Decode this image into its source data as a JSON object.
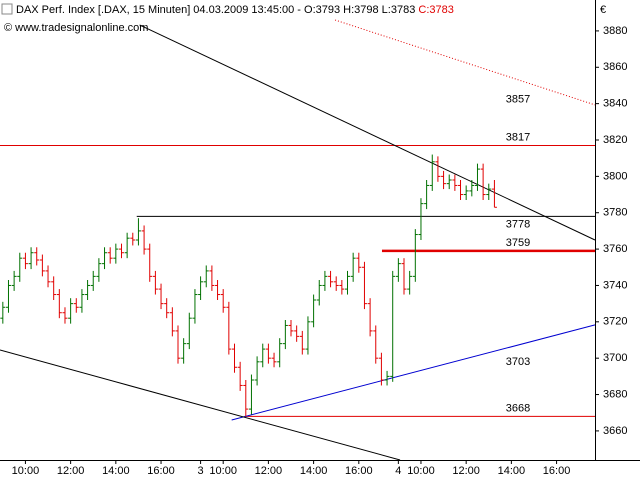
{
  "chart_data": {
    "type": "ohlc",
    "title": "DAX Perf. Index [.DAX, 15 Minuten] 04.03.2009 13:45:00 - O:3793 H:3798 L:3783",
    "title_close": "C:3783",
    "copyright": "© www.tradesignalonline.com",
    "currency": "€",
    "up_color": "#007000",
    "down_color": "#e00000",
    "xlim": [
      -0.5,
      104.8
    ],
    "ylim": [
      3644,
      3886
    ],
    "yticks": [
      3660,
      3680,
      3700,
      3720,
      3740,
      3760,
      3780,
      3800,
      3820,
      3840,
      3860,
      3880
    ],
    "xticks": [
      {
        "value": 4,
        "label": "10:00"
      },
      {
        "value": 12,
        "label": "12:00"
      },
      {
        "value": 20,
        "label": "14:00"
      },
      {
        "value": 28,
        "label": "16:00"
      },
      {
        "value": 35,
        "label": "3"
      },
      {
        "value": 39,
        "label": "10:00"
      },
      {
        "value": 47,
        "label": "12:00"
      },
      {
        "value": 55,
        "label": "14:00"
      },
      {
        "value": 63,
        "label": "16:00"
      },
      {
        "value": 70,
        "label": "4"
      },
      {
        "value": 74,
        "label": "10:00"
      },
      {
        "value": 82,
        "label": "12:00"
      },
      {
        "value": 90,
        "label": "14:00"
      },
      {
        "value": 98,
        "label": "16:00"
      }
    ],
    "open": [
      3722,
      3728,
      3740,
      3745,
      3755,
      3752,
      3758,
      3754,
      3748,
      3742,
      3735,
      3725,
      3722,
      3730,
      3728,
      3735,
      3740,
      3745,
      3752,
      3758,
      3755,
      3760,
      3758,
      3766,
      3765,
      3770,
      3760,
      3745,
      3738,
      3730,
      3725,
      3715,
      3700,
      3708,
      3722,
      3735,
      3742,
      3748,
      3740,
      3735,
      3728,
      3705,
      3695,
      3685,
      3672,
      3688,
      3698,
      3705,
      3700,
      3698,
      3708,
      3718,
      3715,
      3712,
      3705,
      3720,
      3732,
      3740,
      3745,
      3742,
      3740,
      3738,
      3745,
      3755,
      3750,
      3730,
      3715,
      3700,
      3688,
      3690,
      3745,
      3752,
      3738,
      3745,
      3768,
      3785,
      3795,
      3808,
      3800,
      3796,
      3798,
      3795,
      3790,
      3792,
      3795,
      3804,
      3790,
      3793
    ],
    "high": [
      3731,
      3743,
      3748,
      3758,
      3758,
      3761,
      3761,
      3757,
      3751,
      3745,
      3738,
      3728,
      3733,
      3733,
      3738,
      3743,
      3748,
      3755,
      3761,
      3761,
      3763,
      3763,
      3769,
      3769,
      3777,
      3773,
      3763,
      3748,
      3741,
      3733,
      3728,
      3718,
      3711,
      3725,
      3738,
      3745,
      3751,
      3751,
      3743,
      3738,
      3731,
      3708,
      3698,
      3688,
      3691,
      3701,
      3708,
      3708,
      3703,
      3711,
      3721,
      3721,
      3718,
      3715,
      3723,
      3735,
      3743,
      3748,
      3748,
      3745,
      3743,
      3748,
      3758,
      3758,
      3753,
      3733,
      3718,
      3703,
      3693,
      3748,
      3755,
      3755,
      3748,
      3771,
      3788,
      3798,
      3812,
      3811,
      3803,
      3801,
      3801,
      3798,
      3795,
      3798,
      3807,
      3807,
      3796,
      3798
    ],
    "low": [
      3719,
      3725,
      3737,
      3742,
      3749,
      3749,
      3751,
      3745,
      3739,
      3732,
      3722,
      3719,
      3719,
      3725,
      3725,
      3732,
      3737,
      3742,
      3749,
      3752,
      3752,
      3755,
      3755,
      3762,
      3762,
      3757,
      3742,
      3735,
      3727,
      3722,
      3712,
      3697,
      3697,
      3705,
      3719,
      3732,
      3739,
      3737,
      3732,
      3725,
      3702,
      3692,
      3682,
      3668,
      3669,
      3685,
      3695,
      3697,
      3695,
      3695,
      3705,
      3712,
      3709,
      3702,
      3702,
      3717,
      3729,
      3737,
      3739,
      3737,
      3735,
      3735,
      3742,
      3747,
      3727,
      3712,
      3697,
      3685,
      3685,
      3687,
      3742,
      3735,
      3735,
      3742,
      3765,
      3782,
      3792,
      3797,
      3793,
      3793,
      3792,
      3787,
      3787,
      3789,
      3792,
      3787,
      3787,
      3783
    ],
    "close": [
      3728,
      3740,
      3745,
      3755,
      3752,
      3758,
      3754,
      3748,
      3742,
      3735,
      3725,
      3722,
      3730,
      3728,
      3735,
      3740,
      3745,
      3752,
      3758,
      3755,
      3760,
      3758,
      3766,
      3765,
      3770,
      3760,
      3745,
      3738,
      3730,
      3725,
      3715,
      3700,
      3708,
      3722,
      3735,
      3742,
      3748,
      3740,
      3735,
      3728,
      3705,
      3695,
      3685,
      3672,
      3688,
      3698,
      3705,
      3700,
      3698,
      3708,
      3718,
      3715,
      3712,
      3705,
      3720,
      3732,
      3740,
      3745,
      3742,
      3740,
      3738,
      3745,
      3755,
      3750,
      3730,
      3715,
      3700,
      3688,
      3690,
      3745,
      3752,
      3738,
      3745,
      3768,
      3785,
      3795,
      3808,
      3800,
      3796,
      3798,
      3795,
      3790,
      3792,
      3795,
      3804,
      3790,
      3793,
      3783
    ],
    "levels": [
      {
        "value": 3817,
        "from": -0.5,
        "color": "#e00000",
        "width": 1
      },
      {
        "value": 3778,
        "from": 23.7,
        "color": "#000000",
        "width": 1
      },
      {
        "value": 3759,
        "from": 67.1,
        "color": "#e00000",
        "width": 2.5
      },
      {
        "value": 3668,
        "from": 42.8,
        "color": "#e00000",
        "width": 1
      }
    ],
    "trendlines": [
      {
        "label": 3857,
        "start": [
          58.8,
          3886
        ],
        "end": [
          104.8,
          3839.3
        ],
        "color": "#e00000",
        "dashed": true
      },
      {
        "label": 3703,
        "start": [
          40.5,
          3666
        ],
        "end": [
          104.8,
          3718.3
        ],
        "color": "#0000d0",
        "dashed": false
      },
      {
        "start": [
          24.2,
          3883.3
        ],
        "end": [
          104.8,
          3765
        ],
        "color": "#000000",
        "dashed": false
      },
      {
        "start": [
          -0.5,
          3704.5
        ],
        "end": [
          70.3,
          3644
        ],
        "color": "#000000",
        "dashed": false
      }
    ]
  }
}
